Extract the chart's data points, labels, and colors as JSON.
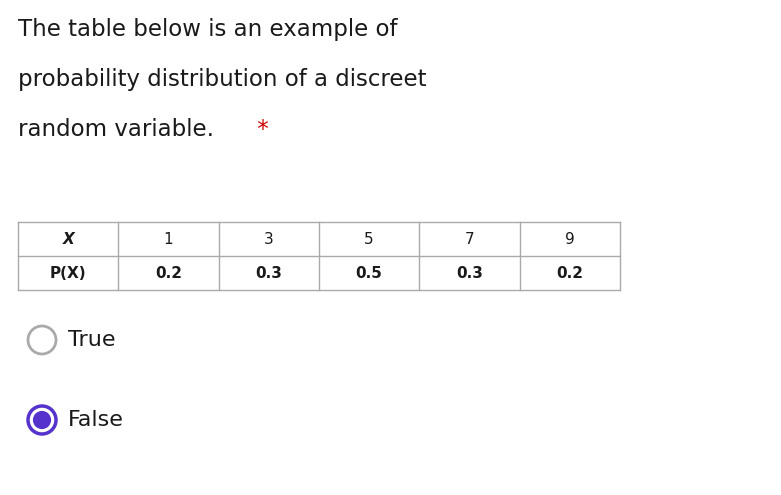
{
  "title_line1": "The table below is an example of",
  "title_line2": "probability distribution of a discreet",
  "title_line3": "random variable.",
  "star_text": " *",
  "star_color": "#cc0000",
  "table_headers": [
    "X",
    "1",
    "3",
    "5",
    "7",
    "9"
  ],
  "table_row_label": "P(X)",
  "table_row_values": [
    "0.2",
    "0.3",
    "0.5",
    "0.3",
    "0.2"
  ],
  "option_true": "True",
  "option_false": "False",
  "true_selected": false,
  "false_selected": true,
  "bg_color": "#ffffff",
  "text_color": "#1a1a1a",
  "table_border_color": "#aaaaaa",
  "radio_unselected_color": "#aaaaaa",
  "radio_selected_fill": "#5533cc",
  "radio_selected_border": "#5533cc",
  "title_fontsize": 16.5,
  "table_header_fontsize": 11,
  "table_data_fontsize": 11,
  "option_fontsize": 16
}
